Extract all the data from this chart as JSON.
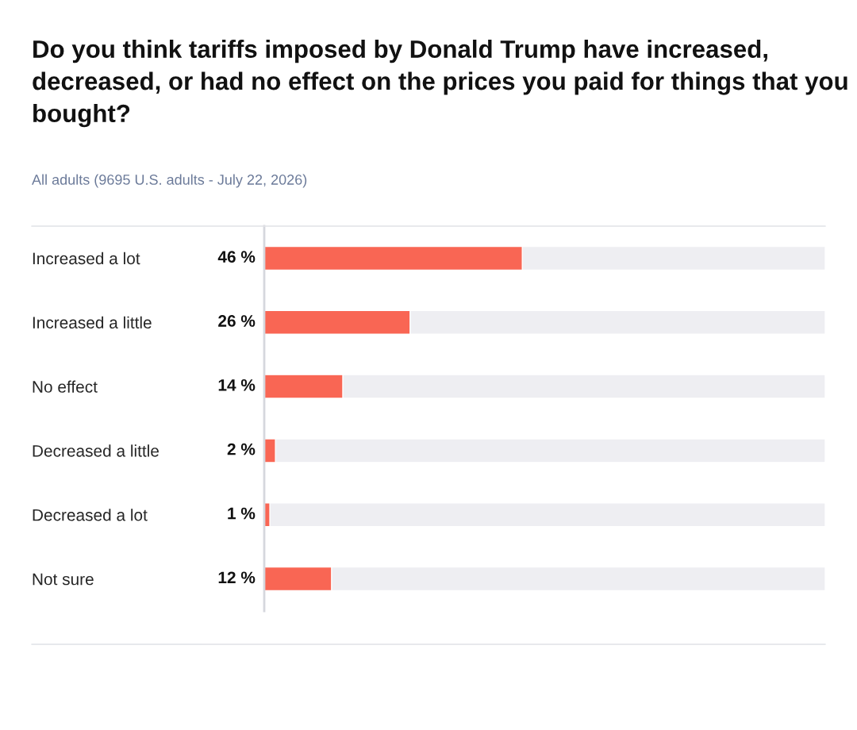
{
  "chart_data": {
    "type": "bar",
    "orientation": "horizontal",
    "title": "Do you think tariffs imposed by Donald Trump have increased, decreased, or had no effect on the prices you paid for things that you bought?",
    "subtitle": "All adults (9695 U.S. adults - July 22, 2026)",
    "categories": [
      "Increased a lot",
      "Increased a little",
      "No effect",
      "Decreased a little",
      "Decreased a lot",
      "Not sure"
    ],
    "values": [
      46,
      26,
      14,
      2,
      1,
      12
    ],
    "value_labels": [
      "46 %",
      "26 %",
      "14 %",
      "2 %",
      "1 %",
      "12 %"
    ],
    "color": "#f96654",
    "xlim": [
      0,
      100
    ],
    "tick_labels": "y"
  }
}
